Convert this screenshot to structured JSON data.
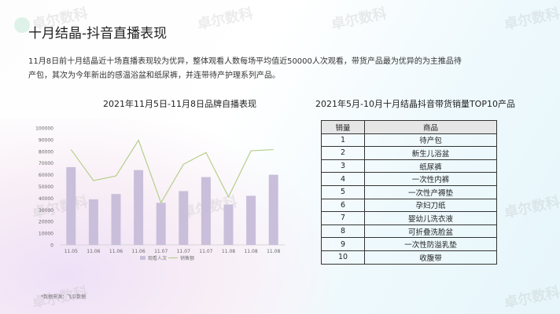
{
  "header": {
    "title": "十月结晶-抖音直播表现"
  },
  "description": "11月8日前十月结晶近十场直播表现较为优异，整体观看人数每场平均值近50000人次观看，带货产品最为优异的为主推品待产包，其次为今年新出的感温浴盆和纸尿裤，并连带待产护理系列产品。",
  "watermark": "卓尔数科",
  "footnote": "*数据来源：飞瓜数据",
  "colors": {
    "bar": "#c9bfdb",
    "line": "#b5cf8a"
  },
  "chart_data": [
    {
      "type": "bar+line",
      "title": "2021年11月5日-11月8日品牌自播表现",
      "categories": [
        "11.05",
        "11.06",
        "11.06",
        "11.06",
        "11.07",
        "11.07",
        "11.07",
        "11.08",
        "11.08",
        "11.08"
      ],
      "ylim": [
        0,
        100000
      ],
      "yticks": [
        "0",
        "10000",
        "20000",
        "30000",
        "40000",
        "50000",
        "60000",
        "70000",
        "80000",
        "90000",
        "100000"
      ],
      "legend_position": "bottom",
      "series": [
        {
          "name": "观看人次",
          "type": "bar",
          "values": [
            66500,
            39000,
            43500,
            64000,
            36000,
            46000,
            58000,
            34500,
            42000,
            60000
          ]
        },
        {
          "name": "销售额",
          "type": "line",
          "values": [
            81500,
            55000,
            59000,
            89500,
            36000,
            69000,
            79000,
            41000,
            80500,
            81500
          ]
        }
      ]
    },
    {
      "type": "table",
      "title": "2021年5月-10月十月结晶抖音带货销量TOP10产品",
      "columns": [
        "销量",
        "商品"
      ],
      "rows": [
        [
          "1",
          "待产包"
        ],
        [
          "2",
          "新生儿浴盆"
        ],
        [
          "3",
          "纸尿裤"
        ],
        [
          "4",
          "一次性内裤"
        ],
        [
          "5",
          "一次性产褥垫"
        ],
        [
          "6",
          "孕妇刀纸"
        ],
        [
          "7",
          "婴幼儿洗衣液"
        ],
        [
          "8",
          "可折叠洗脸盆"
        ],
        [
          "9",
          "一次性防溢乳垫"
        ],
        [
          "10",
          "收腹带"
        ]
      ]
    }
  ]
}
